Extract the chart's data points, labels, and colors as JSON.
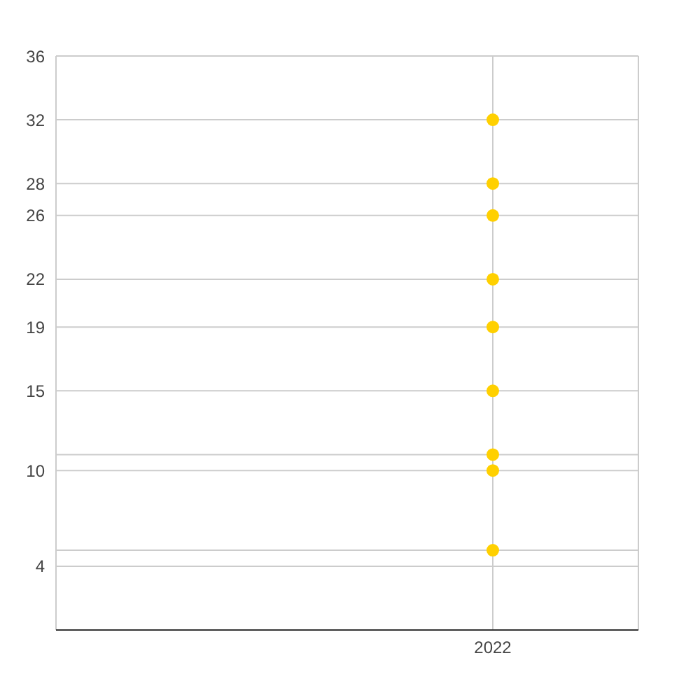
{
  "chart_data": {
    "type": "scatter",
    "categories": [
      null,
      "2022"
    ],
    "series": [
      {
        "color": "#ffd000",
        "values": [
          null,
          32
        ]
      },
      {
        "color": "#ffd000",
        "values": [
          null,
          28
        ]
      },
      {
        "color": "#ffd000",
        "values": [
          null,
          26
        ]
      },
      {
        "color": "#ffd000",
        "values": [
          null,
          22
        ]
      },
      {
        "color": "#ffd000",
        "values": [
          null,
          19
        ]
      },
      {
        "color": "#ffd000",
        "values": [
          null,
          15
        ]
      },
      {
        "color": "#ffd000",
        "values": [
          null,
          11
        ]
      },
      {
        "color": "#ffd000",
        "values": [
          null,
          10
        ]
      },
      {
        "color": "#ffd000",
        "values": [
          null,
          5
        ]
      }
    ],
    "ylim": [
      0,
      36
    ],
    "yticks": [
      {
        "value": 4,
        "label": "4"
      },
      {
        "value": 5,
        "label": null
      },
      10,
      {
        "value": 11,
        "label": null
      },
      15,
      19,
      22,
      26,
      28,
      32,
      36
    ],
    "grid": true,
    "marker": "circle"
  }
}
